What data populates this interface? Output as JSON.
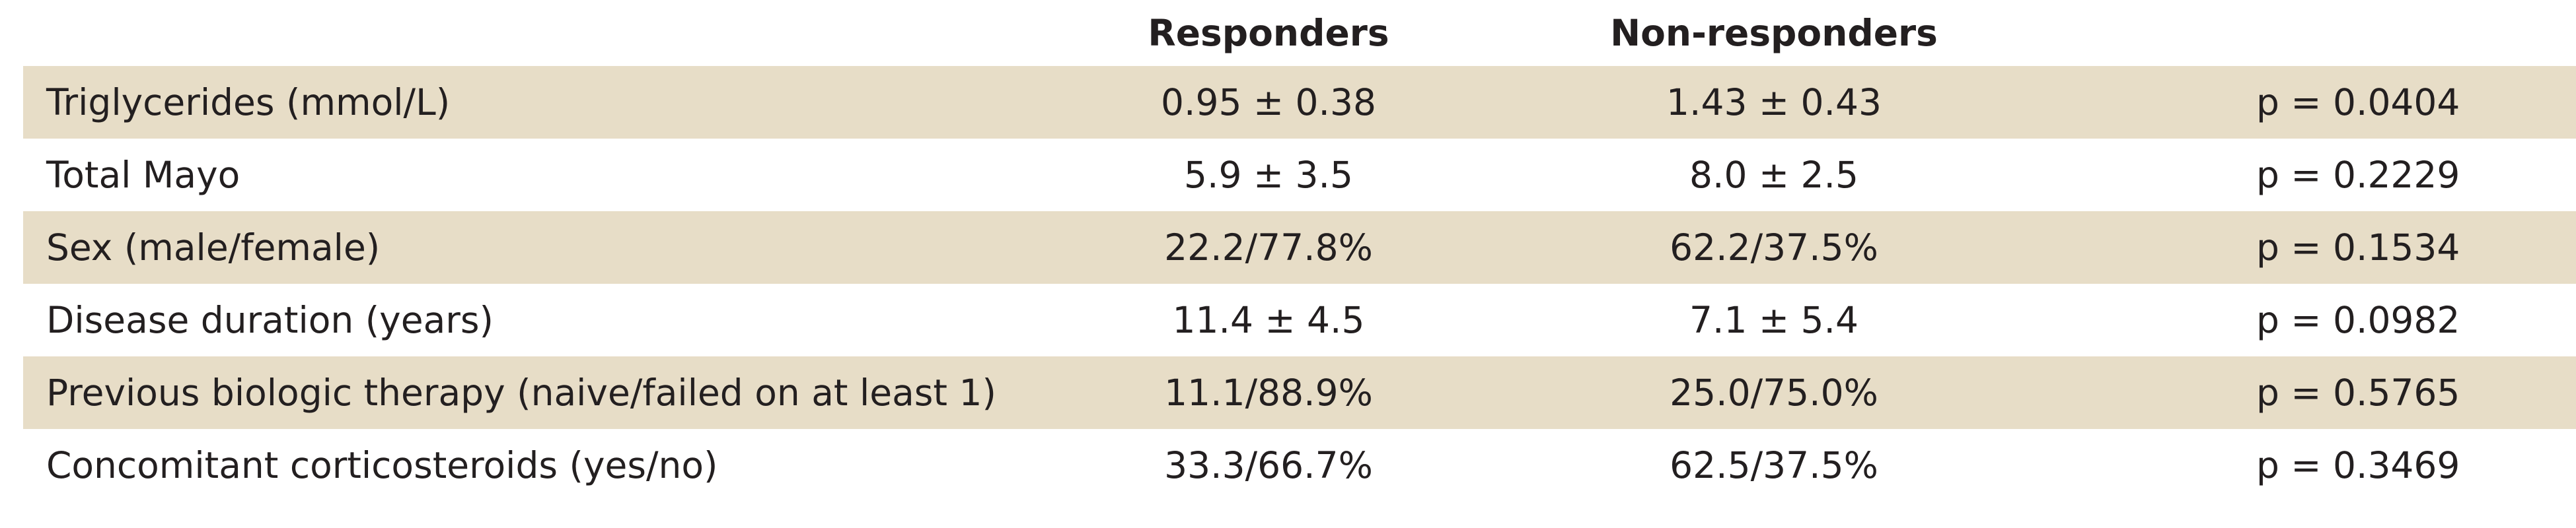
{
  "table": {
    "headers": {
      "responders": "Responders",
      "nonresponders": "Non-responders"
    },
    "rows": [
      {
        "label": "Triglycerides (mmol/L)",
        "responders": "0.95 ± 0.38",
        "nonresponders": "1.43 ± 0.43",
        "p": "p = 0.0404"
      },
      {
        "label": "Total Mayo",
        "responders": "5.9 ± 3.5",
        "nonresponders": "8.0 ± 2.5",
        "p": "p = 0.2229"
      },
      {
        "label": "Sex (male/female)",
        "responders": "22.2/77.8%",
        "nonresponders": "62.2/37.5%",
        "p": "p = 0.1534"
      },
      {
        "label": "Disease duration (years)",
        "responders": "11.4 ± 4.5",
        "nonresponders": "7.1 ± 5.4",
        "p": "p = 0.0982"
      },
      {
        "label": "Previous biologic therapy (naive/failed on at least 1)",
        "responders": "11.1/88.9%",
        "nonresponders": "25.0/75.0%",
        "p": "p = 0.5765"
      },
      {
        "label": "Concomitant corticosteroids (yes/no)",
        "responders": "33.3/66.7%",
        "nonresponders": "62.5/37.5%",
        "p": "p = 0.3469"
      }
    ],
    "colors": {
      "shaded_row": "#e7ddc7",
      "plain_row": "#ffffff",
      "text": "#231f20"
    }
  }
}
